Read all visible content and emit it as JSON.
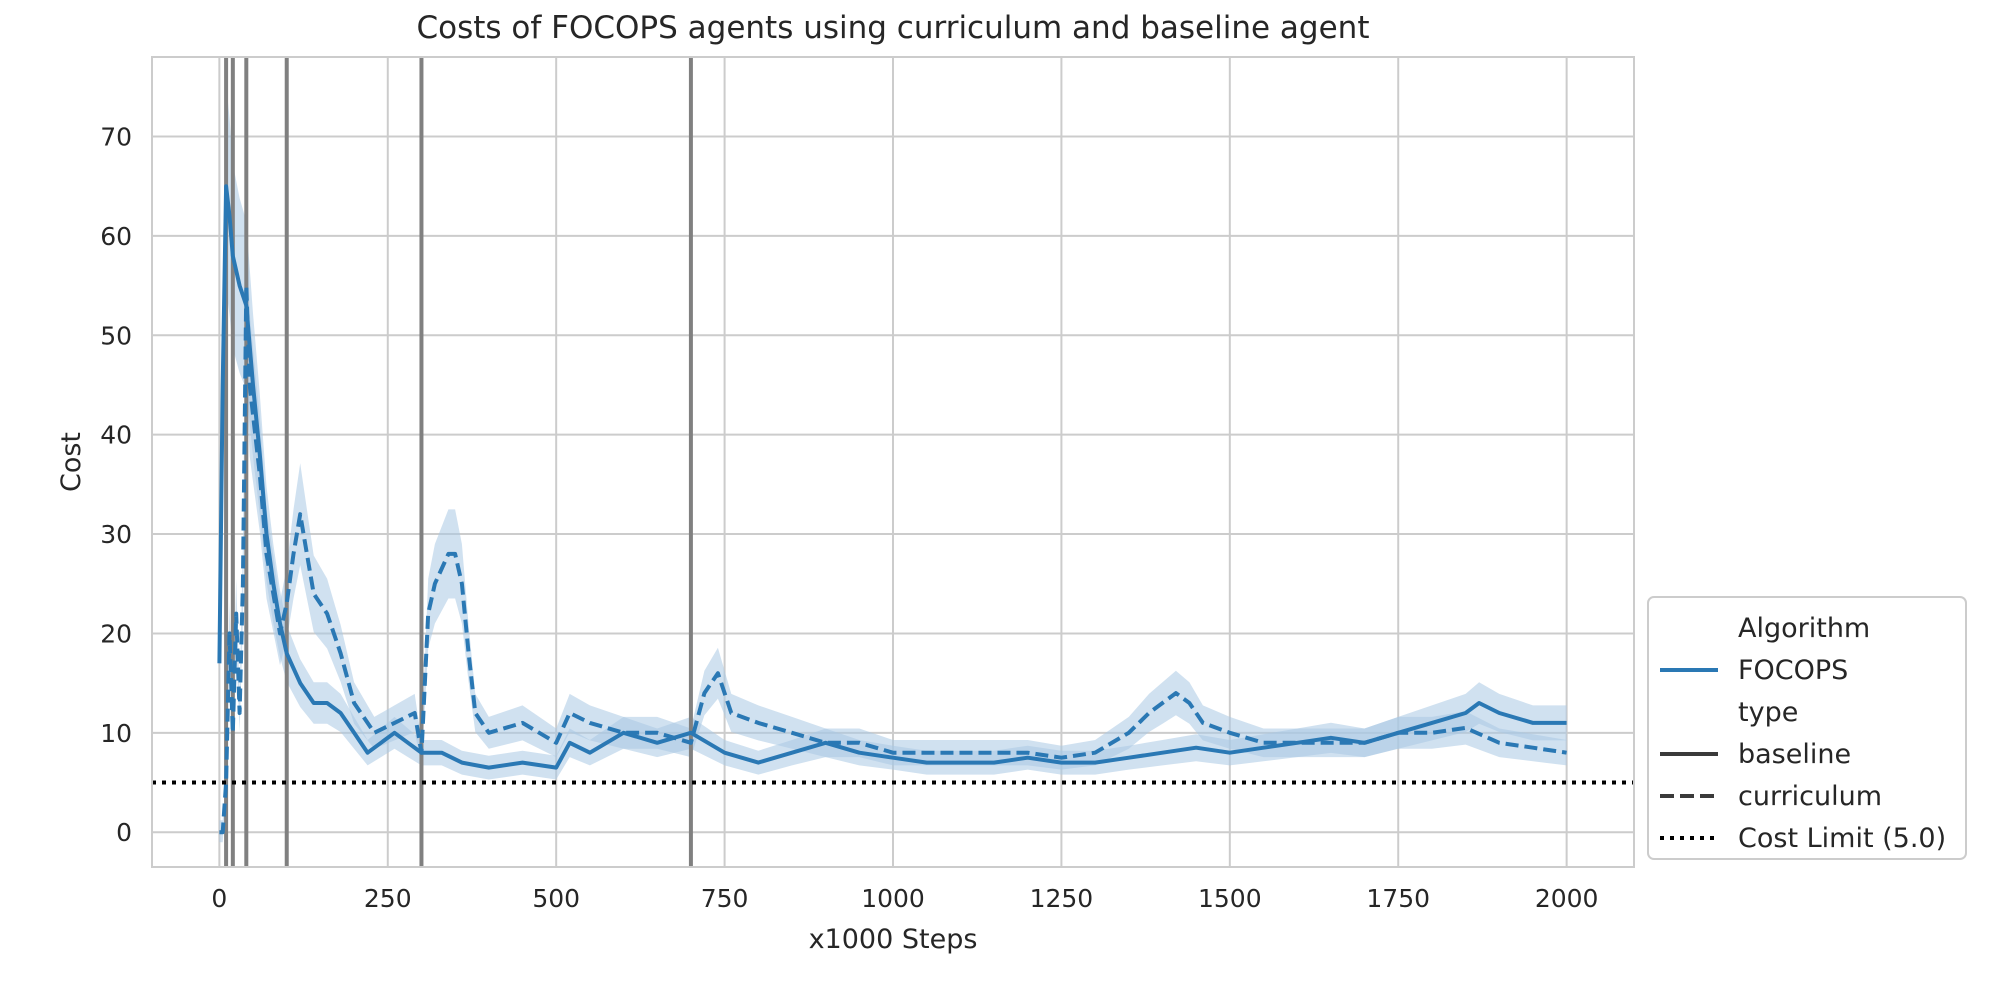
{
  "chart_data": {
    "type": "line",
    "title": "Costs of FOCOPS agents using curriculum and baseline agent",
    "xlabel": "x1000 Steps",
    "ylabel": "Cost",
    "xlim": [
      -100,
      2100
    ],
    "ylim": [
      -3.5,
      78
    ],
    "xticks": [
      0,
      250,
      500,
      750,
      1000,
      1250,
      1500,
      1750,
      2000
    ],
    "yticks": [
      0,
      10,
      20,
      30,
      40,
      50,
      60,
      70
    ],
    "grid": true,
    "legend_placement": "lower-right-outside",
    "legend": {
      "algorithm_heading": "Algorithm",
      "algorithm_entry": "FOCOPS",
      "type_heading": "type",
      "baseline_entry": "baseline",
      "curriculum_entry": "curriculum",
      "limit_entry": "Cost Limit (5.0)"
    },
    "colors": {
      "line": "#2a78b4",
      "band": "#a9c8e3",
      "curriculum_switch": "#808080",
      "cost_limit": "#000000"
    },
    "cost_limit": 5.0,
    "curriculum_switches": [
      10,
      20,
      40,
      100,
      300,
      700
    ],
    "series": [
      {
        "type": "baseline",
        "x": [
          0,
          5,
          10,
          15,
          20,
          30,
          40,
          50,
          60,
          70,
          80,
          90,
          100,
          120,
          140,
          160,
          180,
          200,
          220,
          240,
          260,
          280,
          300,
          330,
          360,
          400,
          450,
          500,
          520,
          550,
          600,
          650,
          700,
          750,
          800,
          850,
          900,
          950,
          1000,
          1050,
          1100,
          1150,
          1200,
          1250,
          1300,
          1350,
          1400,
          1450,
          1500,
          1550,
          1600,
          1650,
          1700,
          1750,
          1800,
          1850,
          1870,
          1900,
          1950,
          2000
        ],
        "y": [
          17,
          45,
          65,
          62,
          58,
          55,
          53,
          45,
          38,
          30,
          25,
          21,
          18,
          15,
          13,
          13,
          12,
          10,
          8,
          9,
          10,
          9,
          8,
          8,
          7,
          6.5,
          7,
          6.5,
          9,
          8,
          10,
          9,
          10,
          8,
          7,
          8,
          9,
          8,
          7.5,
          7,
          7,
          7,
          7.5,
          7,
          7,
          7.5,
          8,
          8.5,
          8,
          8.5,
          9,
          9.5,
          9,
          10,
          11,
          12,
          13,
          12,
          11,
          11
        ]
      },
      {
        "type": "curriculum",
        "x": [
          0,
          5,
          10,
          15,
          20,
          25,
          30,
          35,
          40,
          45,
          50,
          60,
          70,
          80,
          90,
          100,
          110,
          120,
          130,
          140,
          160,
          180,
          200,
          230,
          260,
          290,
          300,
          310,
          320,
          340,
          350,
          360,
          370,
          380,
          400,
          450,
          500,
          520,
          550,
          600,
          650,
          700,
          720,
          740,
          760,
          800,
          850,
          900,
          950,
          1000,
          1050,
          1100,
          1150,
          1200,
          1250,
          1300,
          1350,
          1380,
          1400,
          1420,
          1440,
          1460,
          1500,
          1550,
          1600,
          1700,
          1750,
          1800,
          1850,
          1900,
          1950,
          2000
        ],
        "y": [
          0,
          0,
          5,
          20,
          10,
          22,
          12,
          25,
          55,
          45,
          42,
          36,
          28,
          24,
          20,
          23,
          28,
          32,
          28,
          24,
          22,
          18,
          13,
          10,
          11,
          12,
          8,
          22,
          25,
          28,
          28,
          25,
          18,
          12,
          10,
          11,
          9,
          12,
          11,
          10,
          10,
          9,
          14,
          16,
          12,
          11,
          10,
          9,
          9,
          8,
          8,
          8,
          8,
          8,
          7.5,
          8,
          10,
          12,
          13,
          14,
          13,
          11,
          10,
          9,
          9,
          9,
          10,
          10,
          10.5,
          9,
          8.5,
          8
        ]
      }
    ]
  }
}
